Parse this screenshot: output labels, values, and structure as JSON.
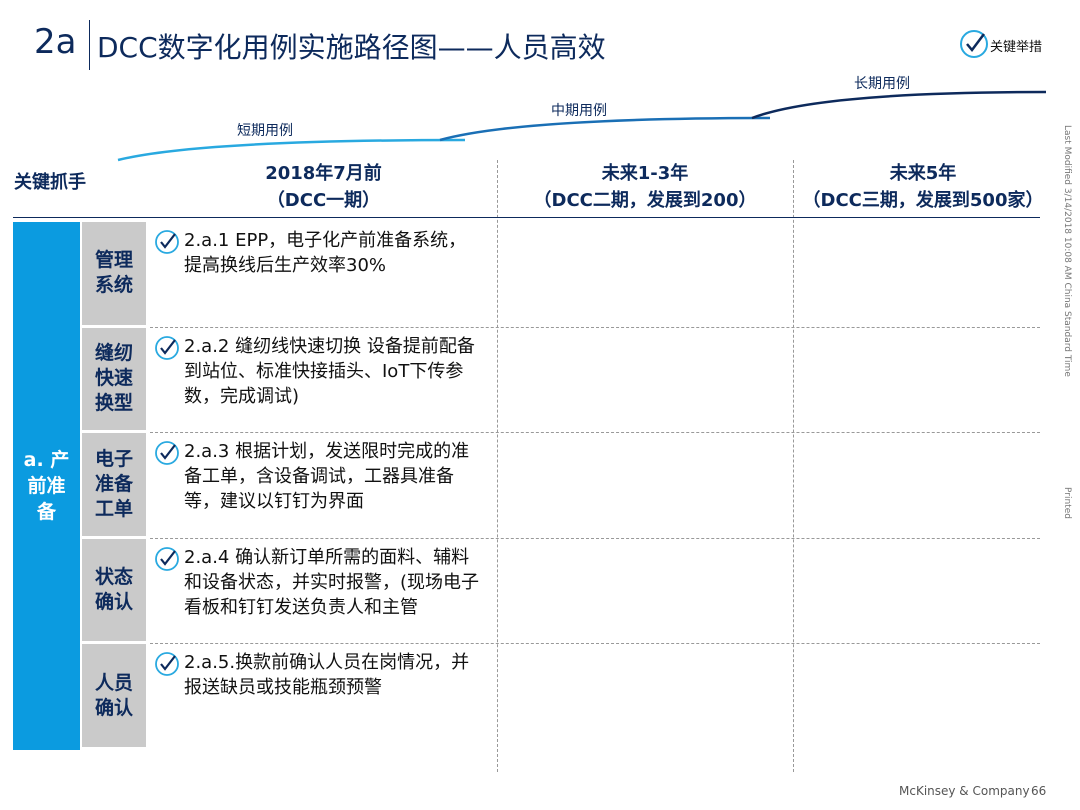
{
  "header": {
    "number": "2a",
    "title": "DCC数字化用例实施路径图——人员高效"
  },
  "legend": {
    "label": "关键举措"
  },
  "phases": [
    "短期用例",
    "中期用例",
    "长期用例"
  ],
  "table": {
    "corner": "关键抓手",
    "columns": [
      {
        "title": "2018年7月前",
        "subtitle": "（DCC一期）"
      },
      {
        "title": "未来1-3年",
        "subtitle": "（DCC二期，发展到200）"
      },
      {
        "title": "未来5年",
        "subtitle": "（DCC三期，发展到500家）"
      }
    ],
    "group": "a. 产前准备",
    "rows": [
      {
        "label": "管理系统",
        "item": "2.a.1 EPP，电子化产前准备系统，提高换线后生产效率30%"
      },
      {
        "label": "缝纫快速换型",
        "item": "2.a.2 缝纫线快速切换 设备提前配备到站位、标准快接插头、IoT下传参数，完成调试)"
      },
      {
        "label": "电子准备工单",
        "item": "2.a.3 根据计划，发送限时完成的准备工单，含设备调试，工器具准备等，建议以钉钉为界面"
      },
      {
        "label": "状态确认",
        "item": "2.a.4 确认新订单所需的面料、辅料和设备状态，并实时报警，(现场电子看板和钉钉发送负责人和主管"
      },
      {
        "label": "人员确认",
        "item": "2.a.5.换款前确认人员在岗情况，并报送缺员或技能瓶颈预警"
      }
    ]
  },
  "side_note": "Last Modified 3/14/2018 10:08 AM China Standard Time",
  "printed": "Printed",
  "footer": {
    "company": "McKinsey & Company",
    "page": "66"
  }
}
